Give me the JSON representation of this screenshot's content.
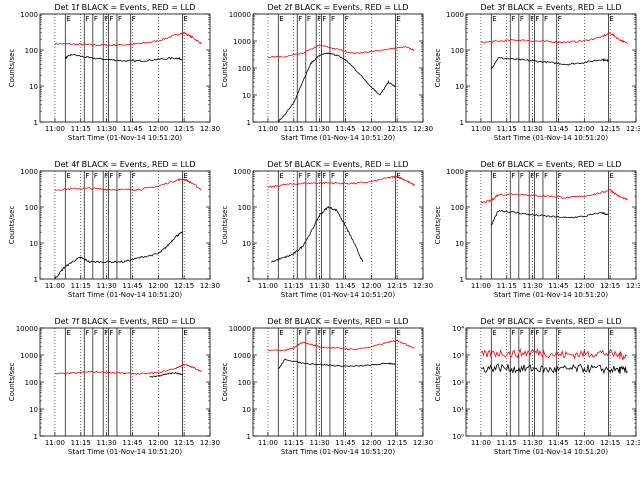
{
  "page": {
    "background": "#ffffff"
  },
  "colors": {
    "events": "#000000",
    "lld": "#ff0000",
    "axis": "#000000"
  },
  "x_ticks": [
    "11:00",
    "11:15",
    "11:30",
    "11:45",
    "12:00",
    "12:15",
    "12:30"
  ],
  "xlabel": "Start Time (01-Nov-14 10:51:20)",
  "ylabel": "Counts/sec",
  "flag_markers": [
    "E",
    "F",
    "F",
    "F",
    "F",
    "F",
    "F",
    "E"
  ],
  "chart_data": [
    {
      "type": "line",
      "title": "Det 1f BLACK = Events, RED = LLD",
      "y_scale": "log",
      "ylim": [
        1,
        1000
      ],
      "y_ticks": [
        "1",
        "10",
        "100",
        "1000"
      ],
      "xlim": [
        "10:51:20",
        "12:30"
      ],
      "series": [
        {
          "color": "#ff0000",
          "x": [
            "11:00",
            "11:10",
            "11:20",
            "11:30",
            "11:40",
            "11:50",
            "12:00",
            "12:10",
            "12:15",
            "12:20",
            "12:25"
          ],
          "y": [
            150,
            145,
            140,
            135,
            140,
            150,
            180,
            260,
            300,
            220,
            150
          ]
        },
        {
          "color": "#000000",
          "x": [
            "11:06",
            "11:10",
            "11:20",
            "11:30",
            "11:40",
            "11:50",
            "12:00",
            "12:10",
            "12:14"
          ],
          "y": [
            60,
            75,
            60,
            55,
            50,
            50,
            55,
            60,
            55
          ]
        }
      ]
    },
    {
      "type": "line",
      "title": "Det 2f BLACK = Events, RED = LLD",
      "y_scale": "log",
      "ylim": [
        1,
        10000
      ],
      "y_ticks": [
        "1",
        "10",
        "100",
        "1000",
        "10000"
      ],
      "xlim": [
        "10:51:20",
        "12:30"
      ],
      "series": [
        {
          "color": "#ff0000",
          "x": [
            "11:00",
            "11:10",
            "11:20",
            "11:30",
            "11:40",
            "11:50",
            "12:00",
            "12:10",
            "12:20",
            "12:25"
          ],
          "y": [
            250,
            260,
            350,
            700,
            500,
            350,
            400,
            500,
            600,
            450
          ]
        },
        {
          "color": "#000000",
          "x": [
            "11:06",
            "11:10",
            "11:15",
            "11:20",
            "11:25",
            "11:30",
            "11:35",
            "11:40",
            "11:45",
            "11:50",
            "12:00",
            "12:05",
            "12:10",
            "12:14"
          ],
          "y": [
            1,
            2,
            5,
            30,
            150,
            300,
            350,
            300,
            200,
            100,
            20,
            10,
            30,
            20
          ]
        }
      ]
    },
    {
      "type": "line",
      "title": "Det 3f BLACK = Events, RED = LLD",
      "y_scale": "log",
      "ylim": [
        1,
        1000
      ],
      "y_ticks": [
        "1",
        "10",
        "100",
        "1000"
      ],
      "xlim": [
        "10:51:20",
        "12:30"
      ],
      "series": [
        {
          "color": "#ff0000",
          "x": [
            "11:00",
            "11:10",
            "11:20",
            "11:30",
            "11:40",
            "11:50",
            "12:00",
            "12:10",
            "12:15",
            "12:20",
            "12:25"
          ],
          "y": [
            160,
            175,
            190,
            180,
            170,
            165,
            180,
            230,
            300,
            200,
            150
          ]
        },
        {
          "color": "#000000",
          "x": [
            "11:06",
            "11:10",
            "11:20",
            "11:30",
            "11:40",
            "11:50",
            "12:00",
            "12:10",
            "12:14"
          ],
          "y": [
            30,
            60,
            55,
            50,
            45,
            40,
            45,
            55,
            50
          ]
        }
      ]
    },
    {
      "type": "line",
      "title": "Det 4f BLACK = Events, RED = LLD",
      "y_scale": "log",
      "ylim": [
        1,
        1000
      ],
      "y_ticks": [
        "1",
        "10",
        "100",
        "1000"
      ],
      "xlim": [
        "10:51:20",
        "12:30"
      ],
      "series": [
        {
          "color": "#ff0000",
          "x": [
            "11:00",
            "11:10",
            "11:20",
            "11:30",
            "11:40",
            "11:50",
            "12:00",
            "12:10",
            "12:15",
            "12:20",
            "12:25"
          ],
          "y": [
            300,
            320,
            330,
            310,
            300,
            310,
            380,
            550,
            600,
            450,
            300
          ]
        },
        {
          "color": "#000000",
          "x": [
            "11:00",
            "11:05",
            "11:10",
            "11:15",
            "11:20",
            "11:30",
            "11:40",
            "11:50",
            "12:00",
            "12:05",
            "12:10",
            "12:14"
          ],
          "y": [
            1,
            2,
            3,
            4,
            3,
            3,
            3,
            4,
            5,
            8,
            15,
            20
          ]
        }
      ]
    },
    {
      "type": "line",
      "title": "Det 5f BLACK = Events, RED = LLD",
      "y_scale": "log",
      "ylim": [
        1,
        1000
      ],
      "y_ticks": [
        "1",
        "10",
        "100",
        "1000"
      ],
      "xlim": [
        "10:51:20",
        "12:30"
      ],
      "series": [
        {
          "color": "#ff0000",
          "x": [
            "11:00",
            "11:10",
            "11:20",
            "11:30",
            "11:40",
            "11:50",
            "12:00",
            "12:10",
            "12:15",
            "12:20",
            "12:25"
          ],
          "y": [
            350,
            420,
            450,
            470,
            460,
            450,
            500,
            650,
            700,
            550,
            400
          ]
        },
        {
          "color": "#000000",
          "x": [
            "11:02",
            "11:10",
            "11:15",
            "11:20",
            "11:25",
            "11:30",
            "11:35",
            "11:40",
            "11:45",
            "11:50",
            "11:55"
          ],
          "y": [
            3,
            4,
            5,
            8,
            20,
            60,
            100,
            80,
            30,
            10,
            3
          ]
        }
      ]
    },
    {
      "type": "line",
      "title": "Det 6f BLACK = Events, RED = LLD",
      "y_scale": "log",
      "ylim": [
        1,
        1000
      ],
      "y_ticks": [
        "1",
        "10",
        "100",
        "1000"
      ],
      "xlim": [
        "10:51:20",
        "12:30"
      ],
      "series": [
        {
          "color": "#ff0000",
          "x": [
            "11:00",
            "11:06",
            "11:10",
            "11:20",
            "11:30",
            "11:40",
            "11:50",
            "12:00",
            "12:10",
            "12:15",
            "12:20",
            "12:25"
          ],
          "y": [
            130,
            150,
            220,
            230,
            210,
            200,
            180,
            200,
            250,
            300,
            200,
            160
          ]
        },
        {
          "color": "#000000",
          "x": [
            "11:06",
            "11:10",
            "11:20",
            "11:30",
            "11:40",
            "11:50",
            "12:00",
            "12:10",
            "12:14"
          ],
          "y": [
            30,
            80,
            70,
            60,
            55,
            50,
            55,
            70,
            60
          ]
        }
      ]
    },
    {
      "type": "line",
      "title": "Det 7f BLACK = Events, RED = LLD",
      "y_scale": "log",
      "ylim": [
        1,
        10000
      ],
      "y_ticks": [
        "1",
        "10",
        "100",
        "1000",
        "10000"
      ],
      "xlim": [
        "10:51:20",
        "12:30"
      ],
      "series": [
        {
          "color": "#ff0000",
          "x": [
            "11:00",
            "11:10",
            "11:20",
            "11:30",
            "11:40",
            "11:50",
            "12:00",
            "12:10",
            "12:15",
            "12:20",
            "12:25"
          ],
          "y": [
            200,
            210,
            240,
            230,
            210,
            200,
            220,
            320,
            450,
            350,
            250
          ]
        },
        {
          "color": "#000000",
          "x": [
            "11:55",
            "12:00",
            "12:05",
            "12:10",
            "12:14"
          ],
          "y": [
            150,
            170,
            200,
            220,
            180
          ]
        }
      ]
    },
    {
      "type": "line",
      "title": "Det 8f BLACK = Events, RED = LLD",
      "y_scale": "log",
      "ylim": [
        1,
        10000
      ],
      "y_ticks": [
        "1",
        "10",
        "100",
        "1000",
        "10000"
      ],
      "xlim": [
        "10:51:20",
        "12:30"
      ],
      "series": [
        {
          "color": "#ff0000",
          "x": [
            "11:00",
            "11:10",
            "11:15",
            "11:20",
            "11:30",
            "11:40",
            "11:50",
            "12:00",
            "12:10",
            "12:15",
            "12:20",
            "12:25"
          ],
          "y": [
            1500,
            1500,
            1800,
            3000,
            2000,
            1800,
            1600,
            2000,
            3000,
            3500,
            2500,
            1800
          ]
        },
        {
          "color": "#000000",
          "x": [
            "11:06",
            "11:10",
            "11:20",
            "11:30",
            "11:40",
            "11:50",
            "12:00",
            "12:10",
            "12:14"
          ],
          "y": [
            300,
            700,
            500,
            450,
            400,
            380,
            420,
            500,
            450
          ]
        }
      ]
    },
    {
      "type": "line",
      "title": "Det 9f BLACK = Events, RED = LLD",
      "y_scale": "log",
      "ylim": [
        1,
        10000
      ],
      "y_ticks": [
        "10⁰",
        "10¹",
        "10²",
        "10³",
        "10⁴"
      ],
      "xlim": [
        "10:51:20",
        "12:30"
      ],
      "series": [
        {
          "color": "#ff0000",
          "x": [
            "11:00",
            "11:10",
            "11:20",
            "11:30",
            "11:40",
            "11:50",
            "12:00",
            "12:10",
            "12:20",
            "12:25"
          ],
          "y": [
            1000,
            1200,
            1100,
            1300,
            1100,
            1000,
            1100,
            1200,
            1000,
            900
          ]
        },
        {
          "color": "#000000",
          "x": [
            "11:00",
            "11:10",
            "11:20",
            "11:30",
            "11:40",
            "11:50",
            "12:00",
            "12:10",
            "12:20",
            "12:25"
          ],
          "y": [
            300,
            350,
            300,
            320,
            280,
            300,
            320,
            300,
            280,
            250
          ]
        }
      ]
    }
  ]
}
